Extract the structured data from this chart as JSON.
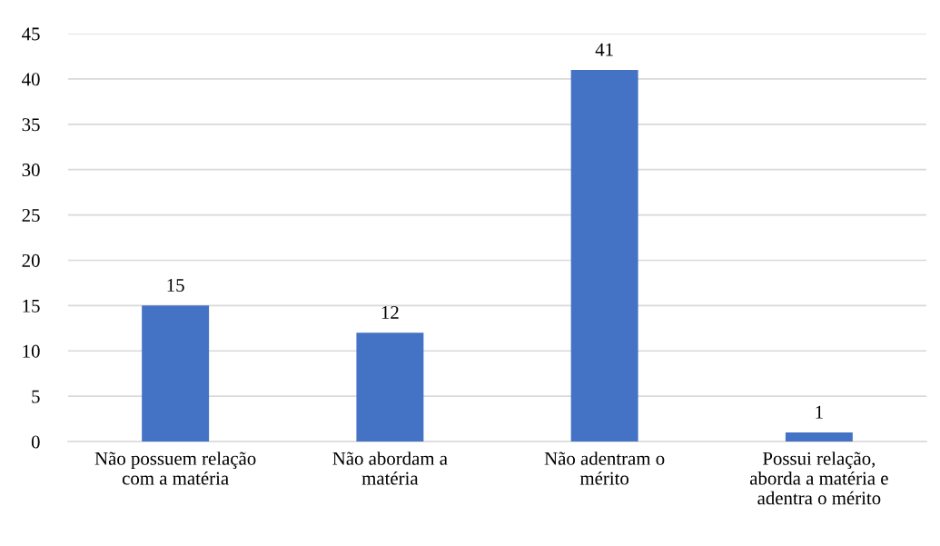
{
  "chart_data": {
    "type": "bar",
    "categories": [
      "Não possuem relação\ncom a matéria",
      "Não abordam a\nmatéria",
      "Não adentram o\nmérito",
      "Possui relação,\naborda a matéria e\nadentra o mérito"
    ],
    "values": [
      15,
      12,
      41,
      1
    ],
    "color": "#4472c4",
    "ylim": [
      0,
      45
    ],
    "yticks": [
      0,
      5,
      10,
      15,
      20,
      25,
      30,
      35,
      40,
      45
    ],
    "grid": "y",
    "data_labels": true,
    "legend": false
  }
}
